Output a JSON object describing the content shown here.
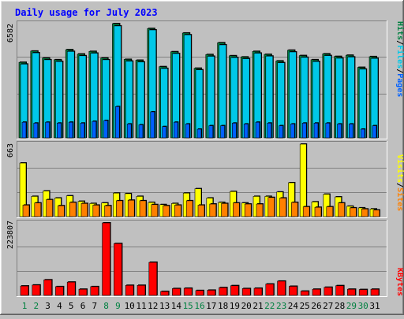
{
  "chart_data": [
    {
      "type": "bar",
      "title": "Daily usage for July 2023",
      "categories": [
        "1",
        "2",
        "3",
        "4",
        "5",
        "6",
        "7",
        "8",
        "9",
        "10",
        "11",
        "12",
        "13",
        "14",
        "15",
        "16",
        "17",
        "18",
        "19",
        "20",
        "21",
        "22",
        "23",
        "24",
        "25",
        "26",
        "27",
        "28",
        "29",
        "30",
        "31"
      ],
      "weekend_days": [
        "1",
        "2",
        "8",
        "9",
        "15",
        "16",
        "22",
        "23",
        "29",
        "30"
      ],
      "ymax_label": "6582",
      "ylim": [
        0,
        6582
      ],
      "axis_label_parts": [
        "Pages",
        "/",
        "Files",
        "/",
        "Hits"
      ],
      "series": [
        {
          "name": "Hits",
          "color": "#008040",
          "values": [
            4350,
            5000,
            4600,
            4500,
            5080,
            4830,
            4980,
            4600,
            6582,
            4520,
            4470,
            6300,
            4100,
            4960,
            6040,
            4010,
            4800,
            5480,
            4730,
            4660,
            4980,
            4810,
            4430,
            5050,
            4740,
            4500,
            4840,
            4690,
            4760,
            4060,
            4680
          ]
        },
        {
          "name": "Files",
          "color": "#00c8e8",
          "values": [
            4250,
            4900,
            4500,
            4400,
            4980,
            4730,
            4880,
            4500,
            6450,
            4420,
            4370,
            6220,
            4000,
            4860,
            5940,
            3920,
            4700,
            5360,
            4630,
            4560,
            4880,
            4710,
            4330,
            4950,
            4640,
            4400,
            4740,
            4590,
            4660,
            3960,
            4580
          ]
        },
        {
          "name": "Pages",
          "color": "#0060ff",
          "values": [
            900,
            850,
            900,
            850,
            900,
            850,
            950,
            1000,
            1800,
            800,
            750,
            1500,
            650,
            900,
            800,
            500,
            700,
            700,
            850,
            800,
            900,
            850,
            700,
            800,
            850,
            850,
            850,
            800,
            800,
            500,
            700
          ]
        }
      ]
    },
    {
      "type": "bar",
      "categories": [
        "1",
        "2",
        "3",
        "4",
        "5",
        "6",
        "7",
        "8",
        "9",
        "10",
        "11",
        "12",
        "13",
        "14",
        "15",
        "16",
        "17",
        "18",
        "19",
        "20",
        "21",
        "22",
        "23",
        "24",
        "25",
        "26",
        "27",
        "28",
        "29",
        "30",
        "31"
      ],
      "ymax_label": "663",
      "ylim": [
        0,
        663
      ],
      "axis_label_parts": [
        "Sites",
        "/",
        "Visits"
      ],
      "series": [
        {
          "name": "Visits",
          "color": "#ffff00",
          "values": [
            490,
            185,
            235,
            170,
            190,
            140,
            120,
            125,
            215,
            210,
            185,
            130,
            110,
            120,
            215,
            255,
            170,
            130,
            230,
            125,
            185,
            185,
            225,
            310,
            663,
            135,
            205,
            180,
            95,
            80,
            70
          ]
        },
        {
          "name": "Sites",
          "color": "#ff8000",
          "values": [
            105,
            125,
            155,
            100,
            130,
            120,
            105,
            100,
            145,
            150,
            145,
            110,
            100,
            105,
            145,
            105,
            115,
            120,
            125,
            115,
            115,
            175,
            170,
            130,
            90,
            85,
            90,
            125,
            80,
            70,
            60
          ]
        }
      ]
    },
    {
      "type": "bar",
      "categories": [
        "1",
        "2",
        "3",
        "4",
        "5",
        "6",
        "7",
        "8",
        "9",
        "10",
        "11",
        "12",
        "13",
        "14",
        "15",
        "16",
        "17",
        "18",
        "19",
        "20",
        "21",
        "22",
        "23",
        "24",
        "25",
        "26",
        "27",
        "28",
        "29",
        "30",
        "31"
      ],
      "ymax_label": "223807",
      "ylim": [
        0,
        223807
      ],
      "axis_label_parts": [
        "KBytes"
      ],
      "series": [
        {
          "name": "KBytes",
          "color": "#ff0000",
          "values": [
            29000,
            32000,
            48000,
            27000,
            41000,
            19000,
            27000,
            223807,
            160000,
            31000,
            31000,
            102000,
            12000,
            21000,
            22000,
            15000,
            16000,
            24000,
            30000,
            21000,
            22000,
            35000,
            44000,
            28000,
            13000,
            19000,
            25000,
            30000,
            19000,
            18000,
            19000
          ]
        }
      ]
    }
  ],
  "colors": {
    "background": "#c0c0c0",
    "plot": "#c0c0c0",
    "grid": "#808080",
    "title": "#0000ff",
    "weekday_label": "#000000",
    "weekend_label": "#008040",
    "shadow": "#000000"
  }
}
